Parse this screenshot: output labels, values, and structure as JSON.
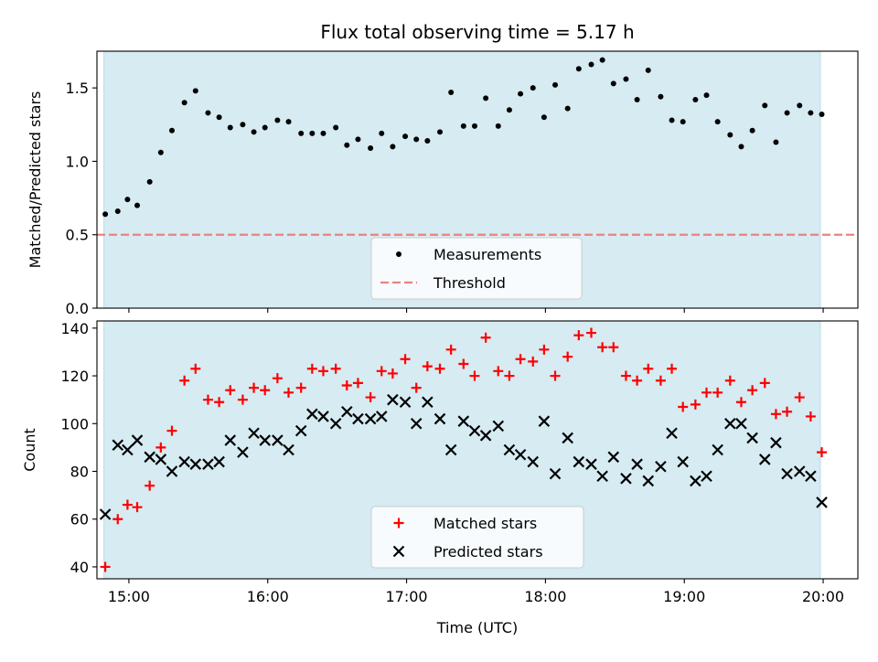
{
  "chart_data": {
    "title": "Flux total observing time = 5.17 h",
    "xlabel": "Time (UTC)",
    "xlim": [
      14.77,
      20.25
    ],
    "shade_x": [
      14.82,
      19.98
    ],
    "x_ticks": [
      {
        "value": 15,
        "label": "15:00"
      },
      {
        "value": 16,
        "label": "16:00"
      },
      {
        "value": 17,
        "label": "17:00"
      },
      {
        "value": 18,
        "label": "18:00"
      },
      {
        "value": 19,
        "label": "19:00"
      },
      {
        "value": 20,
        "label": "20:00"
      }
    ],
    "panels": [
      {
        "type": "scatter",
        "ylabel": "Matched/Predicted stars",
        "ylim": [
          0,
          1.75
        ],
        "y_ticks": [
          {
            "value": 0,
            "label": "0.0"
          },
          {
            "value": 0.5,
            "label": "0.5"
          },
          {
            "value": 1.0,
            "label": "1.0"
          },
          {
            "value": 1.5,
            "label": "1.5"
          }
        ],
        "threshold": {
          "name": "Threshold",
          "value": 0.5,
          "color": "#f08080"
        },
        "legend": {
          "placement": "lower-center",
          "entries": [
            "Measurements",
            "Threshold"
          ]
        },
        "series": [
          {
            "name": "Measurements",
            "marker": "dot",
            "color": "#000000",
            "x": [
              14.83,
              14.92,
              14.99,
              15.06,
              15.15,
              15.23,
              15.31,
              15.4,
              15.48,
              15.57,
              15.65,
              15.73,
              15.82,
              15.9,
              15.98,
              16.07,
              16.15,
              16.24,
              16.32,
              16.4,
              16.49,
              16.57,
              16.65,
              16.74,
              16.82,
              16.9,
              16.99,
              17.07,
              17.15,
              17.24,
              17.32,
              17.41,
              17.49,
              17.57,
              17.66,
              17.74,
              17.82,
              17.91,
              17.99,
              18.07,
              18.16,
              18.24,
              18.33,
              18.41,
              18.49,
              18.58,
              18.66,
              18.74,
              18.83,
              18.91,
              18.99,
              19.08,
              19.16,
              19.24,
              19.33,
              19.41,
              19.49,
              19.58,
              19.66,
              19.74,
              19.83,
              19.91,
              19.99
            ],
            "y": [
              0.64,
              0.66,
              0.74,
              0.7,
              0.86,
              1.06,
              1.21,
              1.4,
              1.48,
              1.33,
              1.3,
              1.23,
              1.25,
              1.2,
              1.23,
              1.28,
              1.27,
              1.19,
              1.19,
              1.19,
              1.23,
              1.11,
              1.15,
              1.09,
              1.19,
              1.1,
              1.17,
              1.15,
              1.14,
              1.2,
              1.47,
              1.24,
              1.24,
              1.43,
              1.24,
              1.35,
              1.46,
              1.5,
              1.3,
              1.52,
              1.36,
              1.63,
              1.66,
              1.69,
              1.53,
              1.56,
              1.42,
              1.62,
              1.44,
              1.28,
              1.27,
              1.42,
              1.45,
              1.27,
              1.18,
              1.1,
              1.21,
              1.38,
              1.13,
              1.33,
              1.38,
              1.33,
              1.32
            ]
          }
        ]
      },
      {
        "type": "scatter",
        "ylabel": "Count",
        "ylim": [
          35,
          143
        ],
        "y_ticks": [
          {
            "value": 40,
            "label": "40"
          },
          {
            "value": 60,
            "label": "60"
          },
          {
            "value": 80,
            "label": "80"
          },
          {
            "value": 100,
            "label": "100"
          },
          {
            "value": 120,
            "label": "120"
          },
          {
            "value": 140,
            "label": "140"
          }
        ],
        "legend": {
          "placement": "lower-center",
          "entries": [
            "Matched stars",
            "Predicted stars"
          ]
        },
        "series": [
          {
            "name": "Matched stars",
            "marker": "plus",
            "color": "#ff0000",
            "x": [
              14.83,
              14.92,
              14.99,
              15.06,
              15.15,
              15.23,
              15.31,
              15.4,
              15.48,
              15.57,
              15.65,
              15.73,
              15.82,
              15.9,
              15.98,
              16.07,
              16.15,
              16.24,
              16.32,
              16.4,
              16.49,
              16.57,
              16.65,
              16.74,
              16.82,
              16.9,
              16.99,
              17.07,
              17.15,
              17.24,
              17.32,
              17.41,
              17.49,
              17.57,
              17.66,
              17.74,
              17.82,
              17.91,
              17.99,
              18.07,
              18.16,
              18.24,
              18.33,
              18.41,
              18.49,
              18.58,
              18.66,
              18.74,
              18.83,
              18.91,
              18.99,
              19.08,
              19.16,
              19.24,
              19.33,
              19.41,
              19.49,
              19.58,
              19.66,
              19.74,
              19.83,
              19.91,
              19.99
            ],
            "y": [
              40,
              60,
              66,
              65,
              74,
              90,
              97,
              118,
              123,
              110,
              109,
              114,
              110,
              115,
              114,
              119,
              113,
              115,
              123,
              122,
              123,
              116,
              117,
              111,
              122,
              121,
              127,
              115,
              124,
              123,
              131,
              125,
              120,
              136,
              122,
              120,
              127,
              126,
              131,
              120,
              128,
              137,
              138,
              132,
              132,
              120,
              118,
              123,
              118,
              123,
              107,
              108,
              113,
              113,
              118,
              109,
              114,
              117,
              104,
              105,
              111,
              103,
              88
            ]
          },
          {
            "name": "Predicted stars",
            "marker": "x",
            "color": "#000000",
            "x": [
              14.83,
              14.92,
              14.99,
              15.06,
              15.15,
              15.23,
              15.31,
              15.4,
              15.48,
              15.57,
              15.65,
              15.73,
              15.82,
              15.9,
              15.98,
              16.07,
              16.15,
              16.24,
              16.32,
              16.4,
              16.49,
              16.57,
              16.65,
              16.74,
              16.82,
              16.9,
              16.99,
              17.07,
              17.15,
              17.24,
              17.32,
              17.41,
              17.49,
              17.57,
              17.66,
              17.74,
              17.82,
              17.91,
              17.99,
              18.07,
              18.16,
              18.24,
              18.33,
              18.41,
              18.49,
              18.58,
              18.66,
              18.74,
              18.83,
              18.91,
              18.99,
              19.08,
              19.16,
              19.24,
              19.33,
              19.41,
              19.49,
              19.58,
              19.66,
              19.74,
              19.83,
              19.91,
              19.99
            ],
            "y": [
              62,
              91,
              89,
              93,
              86,
              85,
              80,
              84,
              83,
              83,
              84,
              93,
              88,
              96,
              93,
              93,
              89,
              97,
              104,
              103,
              100,
              105,
              102,
              102,
              103,
              110,
              109,
              100,
              109,
              102,
              89,
              101,
              97,
              95,
              99,
              89,
              87,
              84,
              101,
              79,
              94,
              84,
              83,
              78,
              86,
              77,
              83,
              76,
              82,
              96,
              84,
              76,
              78,
              89,
              100,
              100,
              94,
              85,
              92,
              79,
              80,
              78,
              67
            ]
          }
        ]
      }
    ]
  }
}
